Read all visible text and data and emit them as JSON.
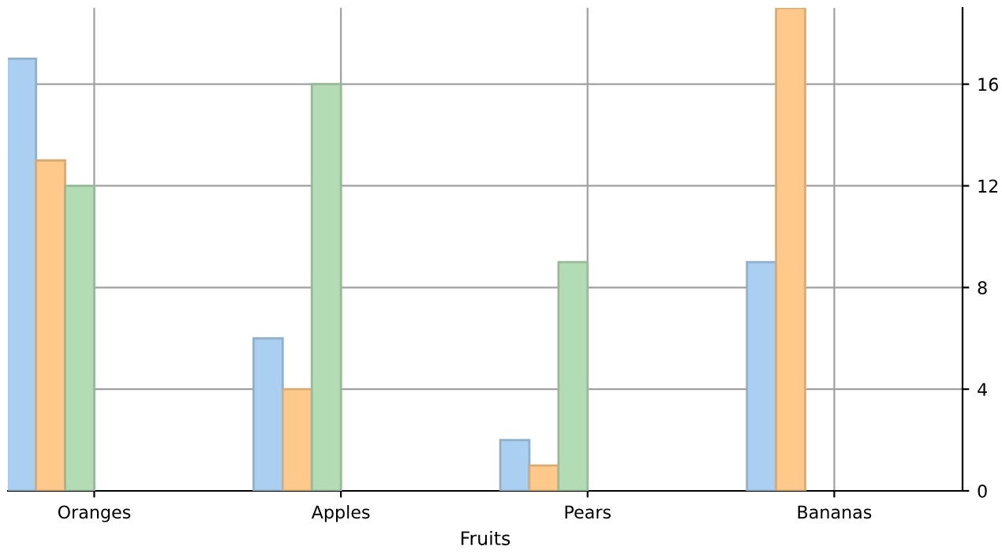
{
  "chart_data": {
    "type": "bar",
    "xlabel": "Fruits",
    "categories": [
      "Oranges",
      "Apples",
      "Pears",
      "Bananas"
    ],
    "series": [
      {
        "color": "#aacff0",
        "values": [
          17,
          6,
          2,
          9
        ]
      },
      {
        "color": "#fec98a",
        "values": [
          13,
          4,
          1,
          19
        ]
      },
      {
        "color": "#b3dbb4",
        "values": [
          12,
          16,
          9,
          null
        ]
      }
    ],
    "ylim": [
      0,
      19
    ],
    "yticks": [
      0,
      4,
      8,
      12,
      16
    ],
    "grid": true,
    "legend": false
  }
}
